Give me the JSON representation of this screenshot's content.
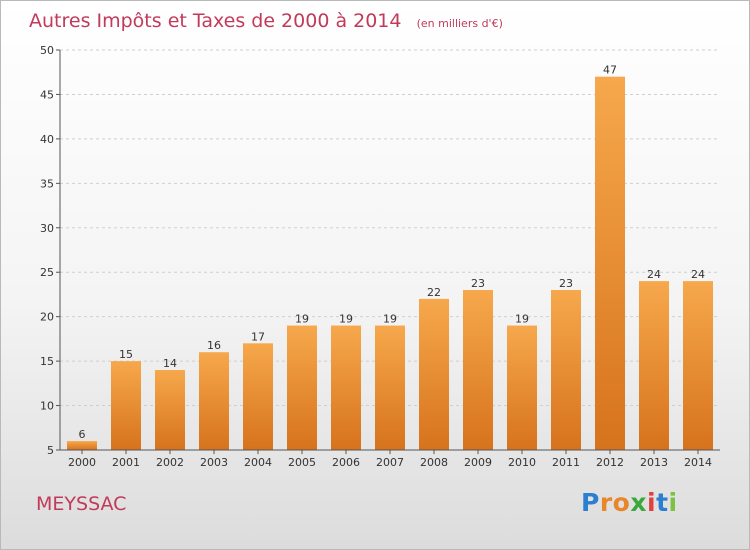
{
  "chart_data": {
    "type": "bar",
    "title": "Autres Impôts et Taxes de 2000 à 2014",
    "subtitle": "(en milliers d'€)",
    "categories": [
      "2000",
      "2001",
      "2002",
      "2003",
      "2004",
      "2005",
      "2006",
      "2007",
      "2008",
      "2009",
      "2010",
      "2011",
      "2012",
      "2013",
      "2014"
    ],
    "values": [
      6,
      15,
      14,
      16,
      17,
      19,
      19,
      19,
      22,
      23,
      19,
      23,
      47,
      24,
      24
    ],
    "ylim": [
      5,
      50
    ],
    "yticks": [
      5,
      10,
      15,
      20,
      25,
      30,
      35,
      40,
      45,
      50
    ],
    "grid": true,
    "bar_color": "#f0a040",
    "xlabel": "",
    "ylabel": ""
  },
  "footer": {
    "town": "MEYSSAC",
    "brand_letters": [
      "P",
      "r",
      "o",
      "x",
      "i",
      "t",
      "i"
    ],
    "brand_colors": [
      "#2b7fd1",
      "#e8862a",
      "#e8862a",
      "#3aa93a",
      "#e04040",
      "#2b7fd1",
      "#7cc242"
    ]
  }
}
